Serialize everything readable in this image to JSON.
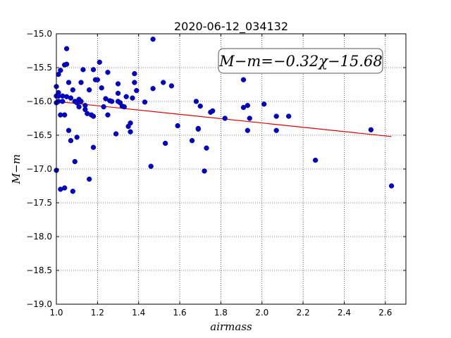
{
  "chart_data": {
    "type": "scatter",
    "title": "2020-06-12_034132",
    "xlabel": "airmass",
    "ylabel": "M−m",
    "xlim": [
      1.0,
      2.7
    ],
    "ylim": [
      -19.0,
      -15.0
    ],
    "y_inverted": false,
    "grid": true,
    "x_ticks": [
      "1.0",
      "1.2",
      "1.4",
      "1.6",
      "1.8",
      "2.0",
      "2.2",
      "2.4",
      "2.6"
    ],
    "y_ticks": [
      "−15.0",
      "−15.5",
      "−16.0",
      "−16.5",
      "−17.0",
      "−17.5",
      "−18.0",
      "−18.5",
      "−19.0"
    ],
    "annotation": "M−m=−0.32χ−15.68",
    "point_color": "#0000cc",
    "fit_color": "#dd0000",
    "series": [
      {
        "type": "scatter",
        "x": [
          1.0,
          1.0,
          1.0,
          1.0,
          1.01,
          1.01,
          1.01,
          1.01,
          1.02,
          1.02,
          1.02,
          1.03,
          1.03,
          1.04,
          1.04,
          1.04,
          1.05,
          1.05,
          1.05,
          1.06,
          1.06,
          1.07,
          1.07,
          1.08,
          1.08,
          1.09,
          1.09,
          1.1,
          1.1,
          1.11,
          1.11,
          1.12,
          1.12,
          1.13,
          1.14,
          1.14,
          1.15,
          1.16,
          1.16,
          1.17,
          1.18,
          1.18,
          1.18,
          1.19,
          1.2,
          1.21,
          1.22,
          1.23,
          1.24,
          1.25,
          1.25,
          1.26,
          1.27,
          1.29,
          1.3,
          1.3,
          1.3,
          1.31,
          1.32,
          1.33,
          1.34,
          1.35,
          1.36,
          1.36,
          1.37,
          1.38,
          1.38,
          1.39,
          1.43,
          1.46,
          1.47,
          1.47,
          1.52,
          1.53,
          1.56,
          1.59,
          1.66,
          1.68,
          1.69,
          1.69,
          1.7,
          1.72,
          1.73,
          1.75,
          1.76,
          1.82,
          1.91,
          1.91,
          1.93,
          1.93,
          1.94,
          2.01,
          2.07,
          2.07,
          2.13,
          2.26,
          2.53,
          2.63
        ],
        "y": [
          -15.78,
          -16.02,
          -15.92,
          -17.02,
          -15.6,
          -15.87,
          -16.0,
          -15.92,
          -15.54,
          -16.2,
          -17.3,
          -15.92,
          -16.0,
          -15.46,
          -16.2,
          -17.28,
          -15.45,
          -15.22,
          -15.93,
          -16.43,
          -15.72,
          -15.95,
          -16.58,
          -15.83,
          -17.33,
          -16.89,
          -16.0,
          -16.53,
          -16.02,
          -15.97,
          -16.08,
          -15.72,
          -16.0,
          -15.53,
          -16.06,
          -16.12,
          -16.18,
          -15.83,
          -17.15,
          -16.2,
          -16.22,
          -16.68,
          -15.53,
          -15.68,
          -15.68,
          -15.42,
          -15.8,
          -16.08,
          -15.96,
          -16.2,
          -15.57,
          -15.99,
          -16.0,
          -16.48,
          -15.74,
          -15.88,
          -16.0,
          -16.02,
          -16.07,
          -16.08,
          -15.93,
          -16.37,
          -16.45,
          -16.32,
          -15.95,
          -15.59,
          -15.72,
          -15.84,
          -16.01,
          -16.96,
          -15.08,
          -15.81,
          -15.72,
          -16.62,
          -15.77,
          -16.36,
          -16.58,
          -16.0,
          -16.41,
          -16.4,
          -16.07,
          -17.03,
          -16.69,
          -16.16,
          -16.14,
          -16.25,
          -15.68,
          -16.09,
          -16.06,
          -16.43,
          -16.25,
          -16.04,
          -16.22,
          -16.43,
          -16.22,
          -16.87,
          -16.42,
          -17.25
        ]
      },
      {
        "type": "line",
        "x": [
          1.0,
          2.63
        ],
        "y": [
          -16.0,
          -16.52
        ]
      }
    ]
  }
}
